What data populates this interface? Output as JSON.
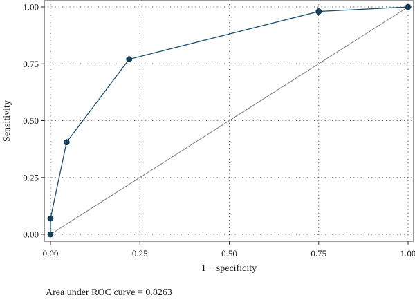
{
  "chart_data": {
    "type": "line",
    "xlabel": "1 − specificity",
    "ylabel": "Sensitivity",
    "xlim": [
      0,
      1
    ],
    "ylim": [
      0,
      1
    ],
    "x_ticks": [
      "0.00",
      "0.25",
      "0.50",
      "0.75",
      "1.00"
    ],
    "y_ticks": [
      "0.00",
      "0.25",
      "0.50",
      "0.75",
      "1.00"
    ],
    "grid": true,
    "series": [
      {
        "values": [
          {
            "x": 0.0,
            "y": 0.0
          },
          {
            "x": 0.0,
            "y": 0.07
          },
          {
            "x": 0.045,
            "y": 0.405
          },
          {
            "x": 0.22,
            "y": 0.77
          },
          {
            "x": 0.75,
            "y": 0.98
          },
          {
            "x": 1.0,
            "y": 1.0
          }
        ],
        "color": "#1f4e6e"
      },
      {
        "values": [
          {
            "x": 0.0,
            "y": 0.0
          },
          {
            "x": 1.0,
            "y": 1.0
          }
        ],
        "color": "#7a7a7a"
      }
    ],
    "annotation": "Area under ROC curve = 0.8263"
  }
}
